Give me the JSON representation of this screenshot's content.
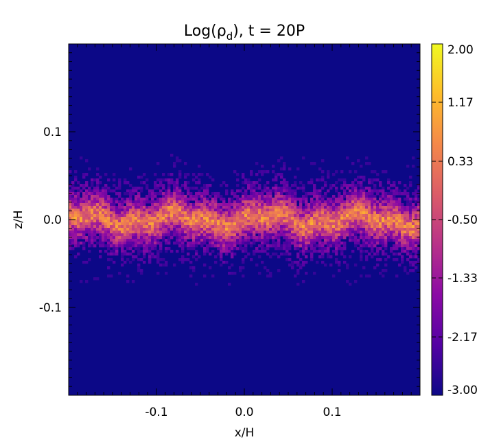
{
  "chart_data": {
    "type": "heatmap",
    "title": "Log(ρ_d), t = 20P",
    "title_parts": {
      "prefix": "Log(ρ",
      "sub": "d",
      "suffix": "), t = 20P"
    },
    "xlabel": "x/H",
    "ylabel": "z/H",
    "xlim": [
      -0.2,
      0.2
    ],
    "ylim": [
      -0.2,
      0.2
    ],
    "x_ticks": [
      -0.1,
      0.0,
      0.1
    ],
    "x_tick_labels": [
      "-0.1",
      "0.0",
      "0.1"
    ],
    "y_ticks": [
      -0.1,
      0.0,
      0.1
    ],
    "y_tick_labels": [
      "-0.1",
      "0.0",
      "0.1"
    ],
    "colorbar": {
      "colormap": "plasma",
      "range": [
        -3.0,
        2.0
      ],
      "ticks": [
        -3.0,
        -2.17,
        -1.33,
        -0.5,
        0.33,
        1.17,
        2.0
      ],
      "tick_labels": [
        "-3.00",
        "-2.17",
        "-1.33",
        "-0.50",
        "0.33",
        "1.17",
        "2.00"
      ]
    },
    "description_values": {
      "background_value": -3.0,
      "layer_midplane_value": 0.33,
      "layer_core_half_thickness": 0.015,
      "layer_extent_half_thickness": 0.06
    }
  },
  "colors": {
    "background": "#0c0887",
    "stops": [
      "#0d0887",
      "#5302a3",
      "#8b0aa5",
      "#b83289",
      "#db5c68",
      "#f48849",
      "#febd2a",
      "#f0f921"
    ]
  }
}
